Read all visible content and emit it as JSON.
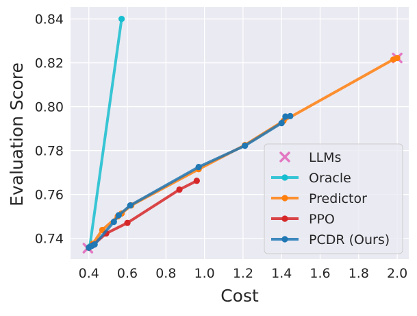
{
  "chart_data": {
    "type": "line",
    "title": "",
    "xlabel": "Cost",
    "ylabel": "Evaluation Score",
    "xlim": [
      0.305,
      2.06
    ],
    "ylim": [
      0.7305,
      0.8455
    ],
    "xticks": [
      0.4,
      0.6,
      0.8,
      1.0,
      1.2,
      1.4,
      1.6,
      1.8,
      2.0
    ],
    "xtick_labels": [
      "0.4",
      "0.6",
      "0.8",
      "1.0",
      "1.2",
      "1.4",
      "1.6",
      "1.8",
      "2.0"
    ],
    "yticks": [
      0.74,
      0.76,
      0.78,
      0.8,
      0.82,
      0.84
    ],
    "ytick_labels": [
      "0.74",
      "0.76",
      "0.78",
      "0.80",
      "0.82",
      "0.84"
    ],
    "grid": true,
    "background": "#eaeaf2",
    "legend_position": "lower-right",
    "series": [
      {
        "name": "LLMs",
        "kind": "scatter",
        "marker": "x",
        "color": "#e377c2",
        "x": [
          0.395,
          2.0
        ],
        "y": [
          0.7355,
          0.8222
        ]
      },
      {
        "name": "Oracle",
        "kind": "line",
        "color": "#17becf",
        "x": [
          0.405,
          0.57
        ],
        "y": [
          0.7362,
          0.84
        ]
      },
      {
        "name": "Predictor",
        "kind": "line",
        "color": "#ff7f0e",
        "x": [
          0.4,
          0.42,
          0.47,
          0.55,
          0.57,
          0.62,
          0.97,
          1.21,
          1.41,
          1.98,
          2.0
        ],
        "y": [
          0.7357,
          0.7375,
          0.7438,
          0.75,
          0.7513,
          0.755,
          0.7715,
          0.7825,
          0.7935,
          0.8215,
          0.8222
        ]
      },
      {
        "name": "PPO",
        "kind": "line",
        "color": "#d62728",
        "x": [
          0.4,
          0.42,
          0.49,
          0.6,
          0.87,
          0.96
        ],
        "y": [
          0.7357,
          0.7368,
          0.7422,
          0.747,
          0.7622,
          0.7662
        ]
      },
      {
        "name": "PCDR (Ours)",
        "kind": "line",
        "color": "#1f77b4",
        "x": [
          0.4,
          0.415,
          0.43,
          0.53,
          0.555,
          0.615,
          0.97,
          1.21,
          1.4,
          1.42,
          1.445
        ],
        "y": [
          0.7357,
          0.7365,
          0.7372,
          0.7475,
          0.7505,
          0.755,
          0.7725,
          0.7822,
          0.7925,
          0.7955,
          0.7957
        ]
      }
    ]
  }
}
